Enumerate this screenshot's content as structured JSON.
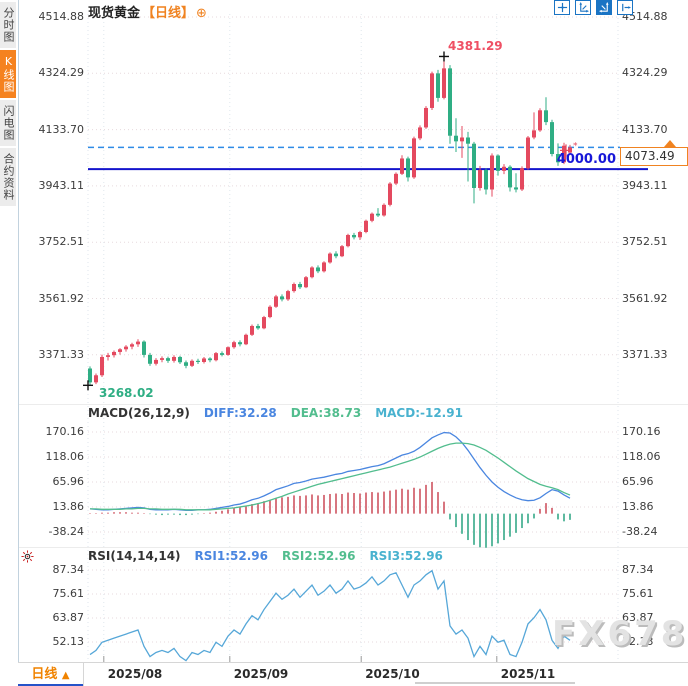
{
  "sidebar": {
    "tabs": [
      {
        "label": "分时图",
        "active": false
      },
      {
        "label": "K线图",
        "active": true
      },
      {
        "label": "闪电图",
        "active": false
      },
      {
        "label": "合约资料",
        "active": false
      }
    ]
  },
  "header": {
    "title": "现货黄金",
    "period_tag": "【日线】",
    "add_icon": "⊕"
  },
  "toolbar": {
    "icons": [
      "crosshair",
      "scale-axis-left",
      "scale-axis-right",
      "exit-right"
    ]
  },
  "colors": {
    "up": "#e4495f",
    "down": "#2fae84",
    "diff_line": "#4a86e0",
    "dea_line": "#52bd8e",
    "macd_text": "#49b2cf",
    "rsi_line": "#56a7d8",
    "hist_pos": "#cf5360",
    "hist_neg": "#35a988",
    "dashed_price_line": "#2e8be6",
    "hline": "#1414cc",
    "accent_orange": "#f08321",
    "grid_h": "#e7dadd",
    "grid_v": "#dfe6ed"
  },
  "price_pane": {
    "axis_labels": [
      "4514.88",
      "4324.29",
      "4133.70",
      "3943.11",
      "3752.51",
      "3561.92",
      "3371.33"
    ],
    "high_annotation": {
      "text": "4381.29",
      "candle_index": 59,
      "price": 4381.29
    },
    "low_annotation": {
      "text": "3268.02",
      "candle_index": 0,
      "price": 3268.02
    },
    "hline": {
      "label": "4000.00",
      "price": 4000
    },
    "current_price": {
      "label": "4073.49",
      "price": 4073.49
    }
  },
  "macd_pane": {
    "params_label": "MACD(26,12,9)",
    "diff_label": "DIFF:32.28",
    "dea_label": "DEA:38.73",
    "macd_label": "MACD:-12.91",
    "axis_labels": [
      "170.16",
      "118.06",
      "65.96",
      "13.86",
      "-38.24"
    ]
  },
  "rsi_pane": {
    "params_label": "RSI(14,14,14)",
    "rsi1_label": "RSI1:52.96",
    "rsi2_label": "RSI2:52.96",
    "rsi3_label": "RSI3:52.96",
    "axis_labels": [
      "87.34",
      "75.61",
      "63.87",
      "52.13"
    ]
  },
  "bottom": {
    "period_label": "日线",
    "period_arrow": "▲",
    "watermark": "FX678"
  },
  "chart_data": [
    {
      "type": "candlestick",
      "title": "现货黄金 日线",
      "ylabel": "price",
      "ylim": [
        3268.02,
        4514.88
      ],
      "month_ticks": [
        {
          "label": "2025/08",
          "index": 2.3
        },
        {
          "label": "2025/09",
          "index": 23.3
        },
        {
          "label": "2025/10",
          "index": 45.2
        },
        {
          "label": "2025/11",
          "index": 67.8
        }
      ],
      "ohlc": [
        [
          3325,
          3332,
          3268.02,
          3278
        ],
        [
          3278,
          3308,
          3272,
          3302
        ],
        [
          3302,
          3372,
          3296,
          3364
        ],
        [
          3364,
          3378,
          3352,
          3370
        ],
        [
          3370,
          3386,
          3362,
          3381
        ],
        [
          3381,
          3394,
          3372,
          3390
        ],
        [
          3390,
          3404,
          3382,
          3399
        ],
        [
          3399,
          3412,
          3390,
          3407
        ],
        [
          3407,
          3424,
          3398,
          3416
        ],
        [
          3416,
          3420,
          3362,
          3371
        ],
        [
          3371,
          3378,
          3334,
          3341
        ],
        [
          3341,
          3360,
          3335,
          3354
        ],
        [
          3354,
          3366,
          3346,
          3360
        ],
        [
          3360,
          3365,
          3344,
          3351
        ],
        [
          3351,
          3370,
          3345,
          3364
        ],
        [
          3364,
          3368,
          3340,
          3346
        ],
        [
          3346,
          3352,
          3326,
          3334
        ],
        [
          3334,
          3356,
          3330,
          3351
        ],
        [
          3351,
          3358,
          3340,
          3347
        ],
        [
          3347,
          3364,
          3342,
          3359
        ],
        [
          3359,
          3363,
          3346,
          3353
        ],
        [
          3353,
          3381,
          3349,
          3377
        ],
        [
          3377,
          3383,
          3366,
          3371
        ],
        [
          3371,
          3400,
          3368,
          3397
        ],
        [
          3397,
          3419,
          3392,
          3414
        ],
        [
          3414,
          3420,
          3400,
          3407
        ],
        [
          3407,
          3443,
          3404,
          3439
        ],
        [
          3439,
          3474,
          3435,
          3469
        ],
        [
          3469,
          3476,
          3456,
          3461
        ],
        [
          3461,
          3503,
          3458,
          3499
        ],
        [
          3499,
          3539,
          3495,
          3534
        ],
        [
          3534,
          3574,
          3530,
          3569
        ],
        [
          3569,
          3576,
          3552,
          3559
        ],
        [
          3559,
          3591,
          3554,
          3587
        ],
        [
          3587,
          3616,
          3582,
          3611
        ],
        [
          3611,
          3618,
          3594,
          3600
        ],
        [
          3600,
          3638,
          3597,
          3634
        ],
        [
          3634,
          3671,
          3630,
          3667
        ],
        [
          3667,
          3674,
          3648,
          3654
        ],
        [
          3654,
          3688,
          3650,
          3684
        ],
        [
          3684,
          3718,
          3680,
          3714
        ],
        [
          3714,
          3722,
          3698,
          3705
        ],
        [
          3705,
          3743,
          3702,
          3739
        ],
        [
          3739,
          3781,
          3735,
          3777
        ],
        [
          3777,
          3784,
          3762,
          3769
        ],
        [
          3769,
          3791,
          3760,
          3787
        ],
        [
          3787,
          3829,
          3783,
          3825
        ],
        [
          3825,
          3853,
          3820,
          3849
        ],
        [
          3849,
          3868,
          3838,
          3843
        ],
        [
          3843,
          3884,
          3839,
          3879
        ],
        [
          3879,
          3956,
          3874,
          3951
        ],
        [
          3951,
          3989,
          3946,
          3984
        ],
        [
          3984,
          4047,
          3980,
          4036
        ],
        [
          4036,
          4042,
          3958,
          3972
        ],
        [
          3972,
          4110,
          3967,
          4104
        ],
        [
          4104,
          4148,
          4098,
          4141
        ],
        [
          4141,
          4213,
          4136,
          4207
        ],
        [
          4207,
          4330,
          4200,
          4324
        ],
        [
          4324,
          4336,
          4228,
          4241
        ],
        [
          4241,
          4381.29,
          4236,
          4341
        ],
        [
          4341,
          4352,
          4086,
          4113
        ],
        [
          4113,
          4172,
          4058,
          4094
        ],
        [
          4094,
          4146,
          4038,
          4107
        ],
        [
          4107,
          4126,
          3958,
          4086
        ],
        [
          4086,
          4092,
          3884,
          3936
        ],
        [
          3936,
          4011,
          3927,
          3997
        ],
        [
          3997,
          4002,
          3914,
          3931
        ],
        [
          3931,
          4053,
          3907,
          4046
        ],
        [
          4046,
          4050,
          3978,
          3994
        ],
        [
          3994,
          4017,
          3983,
          4008
        ],
        [
          4008,
          4013,
          3924,
          3938
        ],
        [
          3938,
          3986,
          3921,
          3931
        ],
        [
          3931,
          4009,
          3926,
          4003
        ],
        [
          4003,
          4112,
          3998,
          4107
        ],
        [
          4107,
          4192,
          4101,
          4131
        ],
        [
          4131,
          4206,
          4126,
          4199
        ],
        [
          4199,
          4243,
          4149,
          4159
        ],
        [
          4159,
          4167,
          4043,
          4051
        ],
        [
          4051,
          4087,
          4011,
          4023
        ],
        [
          4023,
          4089,
          4017,
          4079
        ],
        [
          4056,
          4082,
          4048,
          4073.49
        ]
      ]
    },
    {
      "type": "line+bar",
      "title": "MACD(26,12,9)",
      "ylim": [
        -80,
        180
      ],
      "series": [
        {
          "name": "DIFF",
          "values": [
            10,
            9,
            8,
            8,
            9,
            10,
            11,
            12,
            13,
            12,
            9,
            8,
            8,
            8,
            9,
            8,
            7,
            7,
            8,
            8,
            9,
            11,
            13,
            15,
            18,
            20,
            24,
            29,
            32,
            37,
            43,
            50,
            54,
            58,
            63,
            65,
            68,
            72,
            74,
            76,
            79,
            82,
            84,
            88,
            90,
            92,
            95,
            98,
            100,
            104,
            110,
            116,
            122,
            125,
            130,
            138,
            148,
            158,
            164,
            169,
            168,
            160,
            148,
            132,
            114,
            96,
            80,
            66,
            55,
            46,
            39,
            33,
            29,
            27,
            28,
            33,
            42,
            50,
            47,
            39,
            32.28
          ]
        },
        {
          "name": "DEA",
          "values": [
            10,
            10,
            9,
            9,
            9,
            9,
            10,
            10,
            11,
            11,
            10,
            10,
            9,
            9,
            9,
            9,
            8,
            8,
            8,
            8,
            8,
            9,
            10,
            11,
            12,
            14,
            16,
            18,
            21,
            24,
            28,
            32,
            36,
            41,
            45,
            49,
            53,
            57,
            61,
            64,
            67,
            70,
            73,
            76,
            79,
            82,
            85,
            88,
            91,
            94,
            97,
            101,
            105,
            109,
            113,
            118,
            124,
            130,
            136,
            141,
            145,
            147,
            147,
            146,
            143,
            138,
            132,
            124,
            116,
            107,
            98,
            89,
            81,
            73,
            67,
            61,
            57,
            54,
            50,
            44,
            38.73
          ]
        },
        {
          "name": "MACD_HIST",
          "values": [
            1,
            1,
            2,
            2,
            3,
            3,
            3,
            2,
            2,
            1,
            -1,
            -2,
            -3,
            -2,
            -2,
            -3,
            -3,
            -2,
            -1,
            1,
            2,
            4,
            6,
            9,
            12,
            13,
            16,
            20,
            22,
            26,
            28,
            32,
            34,
            35,
            38,
            37,
            38,
            40,
            38,
            39,
            41,
            42,
            41,
            44,
            43,
            42,
            44,
            45,
            44,
            46,
            48,
            50,
            52,
            50,
            54,
            52,
            60,
            66,
            45,
            25,
            -12,
            -28,
            -42,
            -55,
            -65,
            -70,
            -71,
            -68,
            -62,
            -55,
            -48,
            -40,
            -30,
            -20,
            -10,
            10,
            22,
            12,
            -12,
            -16,
            -12.91
          ]
        }
      ]
    },
    {
      "type": "line",
      "title": "RSI(14,14,14)",
      "ylim": [
        40,
        90
      ],
      "series": [
        {
          "name": "RSI",
          "values": [
            46,
            48,
            52,
            53,
            54,
            55,
            56,
            57,
            58,
            50,
            45,
            47,
            48,
            47,
            49,
            45,
            43,
            47,
            46,
            48,
            47,
            52,
            50,
            55,
            58,
            56,
            61,
            65,
            63,
            68,
            72,
            76,
            73,
            75,
            78,
            74,
            77,
            80,
            75,
            77,
            80,
            76,
            78,
            82,
            78,
            79,
            81,
            84,
            80,
            82,
            85,
            86,
            80,
            74,
            80,
            82,
            85,
            87,
            78,
            82,
            60,
            56,
            58,
            54,
            45,
            50,
            46,
            55,
            52,
            53,
            46,
            45,
            52,
            61,
            64,
            68,
            63,
            53,
            49,
            55,
            52.96
          ]
        }
      ]
    }
  ]
}
